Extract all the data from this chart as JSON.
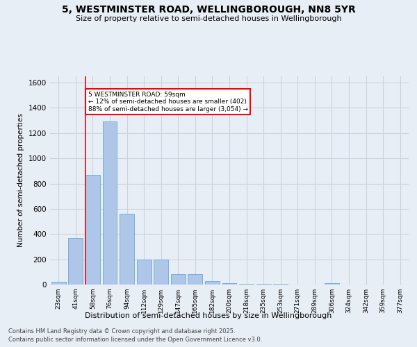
{
  "title": "5, WESTMINSTER ROAD, WELLINGBOROUGH, NN8 5YR",
  "subtitle": "Size of property relative to semi-detached houses in Wellingborough",
  "xlabel": "Distribution of semi-detached houses by size in Wellingborough",
  "ylabel": "Number of semi-detached properties",
  "categories": [
    "23sqm",
    "41sqm",
    "58sqm",
    "76sqm",
    "94sqm",
    "112sqm",
    "129sqm",
    "147sqm",
    "165sqm",
    "182sqm",
    "200sqm",
    "218sqm",
    "235sqm",
    "253sqm",
    "271sqm",
    "289sqm",
    "306sqm",
    "324sqm",
    "342sqm",
    "359sqm",
    "377sqm"
  ],
  "values": [
    20,
    370,
    870,
    1290,
    560,
    200,
    200,
    80,
    80,
    30,
    10,
    5,
    5,
    5,
    0,
    0,
    10,
    0,
    0,
    0,
    0
  ],
  "bar_color": "#aec6e8",
  "bar_edge_color": "#5a9fd4",
  "pct_smaller": 12,
  "pct_larger": 88,
  "n_smaller": 402,
  "n_larger": 3054,
  "ylim": [
    0,
    1650
  ],
  "yticks": [
    0,
    200,
    400,
    600,
    800,
    1000,
    1200,
    1400,
    1600
  ],
  "grid_color": "#c8d4e0",
  "bg_color": "#e8eef5",
  "footer1": "Contains HM Land Registry data © Crown copyright and database right 2025.",
  "footer2": "Contains public sector information licensed under the Open Government Licence v3.0."
}
